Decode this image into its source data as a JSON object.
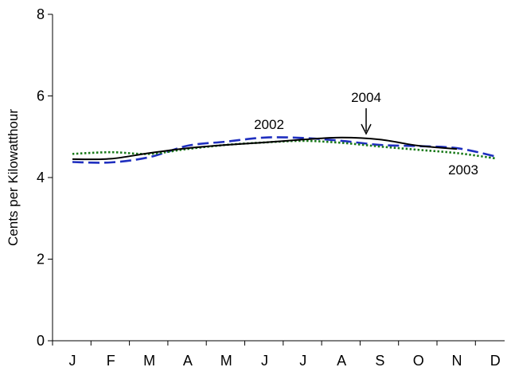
{
  "chart_data": {
    "type": "line",
    "title": "",
    "xlabel": "",
    "ylabel": "Cents per Kilowatthour",
    "categories": [
      "J",
      "F",
      "M",
      "A",
      "M",
      "J",
      "J",
      "A",
      "S",
      "O",
      "N",
      "D"
    ],
    "ylim": [
      0,
      8
    ],
    "yticks": [
      "0",
      "2",
      "4",
      "6",
      "8"
    ],
    "grid": false,
    "legend": "none",
    "series": [
      {
        "name": "2002",
        "style": "dashed",
        "color": "#1f2fbf",
        "values": [
          4.38,
          4.37,
          4.5,
          4.78,
          4.88,
          4.98,
          4.97,
          4.9,
          4.8,
          4.77,
          4.72,
          4.52
        ]
      },
      {
        "name": "2003",
        "style": "dotted",
        "color": "#1a7a1a",
        "values": [
          4.58,
          4.62,
          4.58,
          4.7,
          4.8,
          4.86,
          4.9,
          4.85,
          4.76,
          4.68,
          4.6,
          4.47
        ]
      },
      {
        "name": "2004",
        "style": "solid",
        "color": "#000000",
        "values": [
          4.45,
          4.46,
          4.6,
          4.72,
          4.8,
          4.86,
          4.93,
          4.98,
          4.93,
          4.78,
          4.7,
          null
        ]
      }
    ],
    "annotations": [
      {
        "text": "2002",
        "series": "2002"
      },
      {
        "text": "2004",
        "series": "2004",
        "arrow": true
      },
      {
        "text": "2003",
        "series": "2003"
      }
    ]
  }
}
